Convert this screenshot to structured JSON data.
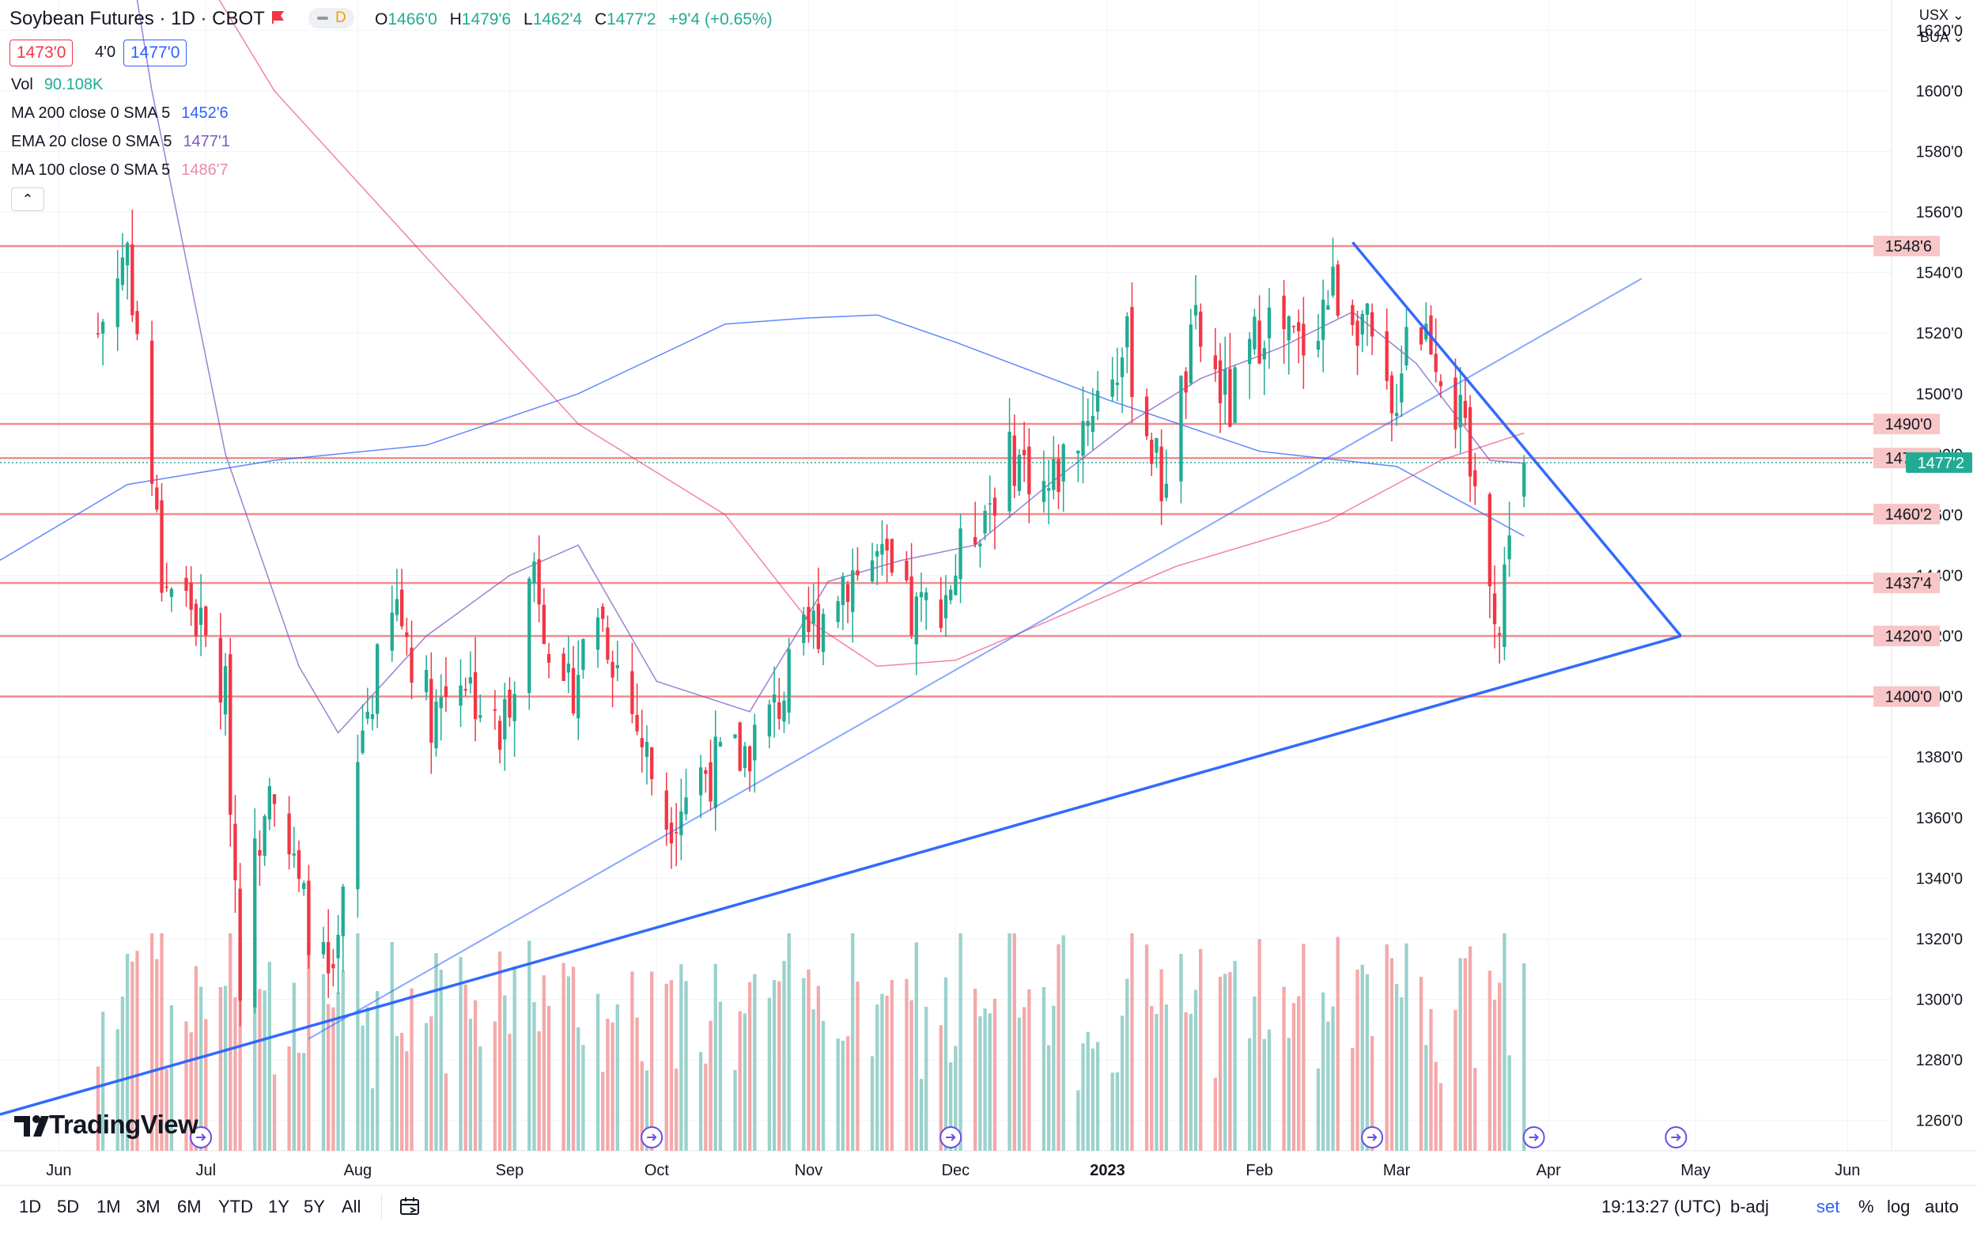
{
  "header": {
    "title": "Soybean Futures · 1D · CBOT",
    "interval_badge": "D",
    "ohlc": [
      {
        "label": "O",
        "value": "1466'0"
      },
      {
        "label": "H",
        "value": "1479'6"
      },
      {
        "label": "L",
        "value": "1462'4"
      },
      {
        "label": "C",
        "value": "1477'2"
      }
    ],
    "change": "+9'4 (+0.65%)",
    "bid": "1473'0",
    "spread": "4'0",
    "ask": "1477'0"
  },
  "indicators": [
    {
      "label": "Vol",
      "value": "90.108K",
      "color": "#22ab94"
    },
    {
      "label": "MA 200 close 0 SMA 5",
      "value": "1452'6",
      "color": "#2962ff"
    },
    {
      "label": "EMA 20 close 0 SMA 5",
      "value": "1477'1",
      "color": "#7e57c2"
    },
    {
      "label": "MA 100 close 0 SMA 5",
      "value": "1486'7",
      "color": "#e91e63"
    }
  ],
  "collapse_icon": "chevron-up",
  "currency": "USX",
  "unit": "BUA",
  "bottom_bar": {
    "ranges": [
      "1D",
      "5D",
      "1M",
      "3M",
      "6M",
      "YTD",
      "1Y",
      "5Y",
      "All"
    ],
    "clock": "19:13:27 (UTC)",
    "options": [
      {
        "label": "b-adj",
        "active": false
      },
      {
        "label": "set",
        "active": true
      },
      {
        "label": "%",
        "active": false
      },
      {
        "label": "log",
        "active": false
      },
      {
        "label": "auto",
        "active": false
      }
    ]
  },
  "logo": "TradingView",
  "colors": {
    "up": "#22ab94",
    "down": "#f23645",
    "up_vol": "#9bd2cc",
    "down_vol": "#f4a9aa",
    "level": "#f28b8b",
    "trend": "#2962ff"
  },
  "chart_data": {
    "type": "candlestick",
    "y_axis": {
      "ylim": [
        1250,
        1630
      ],
      "ticks": [
        "1260'0",
        "1280'0",
        "1300'0",
        "1320'0",
        "1340'0",
        "1360'0",
        "1380'0",
        "1400'0",
        "1420'0",
        "1440'0",
        "1460'0",
        "1480'0",
        "1500'0",
        "1520'0",
        "1540'0",
        "1560'0",
        "1580'0",
        "1600'0",
        "1620'0"
      ],
      "tick_values": [
        1260,
        1280,
        1300,
        1320,
        1340,
        1360,
        1380,
        1400,
        1420,
        1440,
        1460,
        1480,
        1500,
        1520,
        1540,
        1560,
        1580,
        1600,
        1620
      ]
    },
    "x_axis": {
      "labels": [
        "Jun",
        "Jul",
        "Aug",
        "Sep",
        "Oct",
        "Nov",
        "Dec",
        "2023",
        "Feb",
        "Mar",
        "Apr",
        "May",
        "Jun"
      ],
      "dates": [
        "2022-06-01",
        "2022-07-01",
        "2022-08-01",
        "2022-09-01",
        "2022-10-01",
        "2022-11-01",
        "2022-12-01",
        "2023-01-01",
        "2023-02-01",
        "2023-03-01",
        "2023-04-01",
        "2023-05-01",
        "2023-06-01"
      ],
      "range": [
        "2022-05-20",
        "2023-06-10"
      ]
    },
    "horizontal_levels": [
      {
        "value": 1548.75,
        "label": "1548'6"
      },
      {
        "value": 1490,
        "label": "1490'0"
      },
      {
        "value": 1478.75,
        "label": "1478'6"
      },
      {
        "value": 1460.25,
        "label": "1460'2"
      },
      {
        "value": 1437.5,
        "label": "1437'4"
      },
      {
        "value": 1420,
        "label": "1420'0"
      },
      {
        "value": 1400,
        "label": "1400'0"
      }
    ],
    "last_price": {
      "value": 1477.25,
      "label": "1477'2"
    },
    "trendlines": [
      {
        "name": "resistance",
        "from": [
          "2023-02-20",
          1550
        ],
        "to": [
          "2023-04-28",
          1420
        ]
      },
      {
        "name": "support",
        "from": [
          "2022-05-20",
          1262
        ],
        "to": [
          "2023-04-28",
          1420
        ]
      },
      {
        "name": "rising-support",
        "from": [
          "2022-07-22",
          1287
        ],
        "to": [
          "2023-04-20",
          1538
        ]
      }
    ],
    "moving_averages": [
      {
        "name": "MA 200",
        "color": "#2962ff",
        "x": [
          "2022-05-20",
          "2022-06-15",
          "2022-07-15",
          "2022-08-15",
          "2022-09-15",
          "2022-10-15",
          "2022-11-01",
          "2022-11-15",
          "2022-12-01",
          "2023-01-01",
          "2023-02-01",
          "2023-03-01",
          "2023-03-27"
        ],
        "y": [
          1445,
          1470,
          1478,
          1483,
          1500,
          1523,
          1525,
          1526,
          1517,
          1498,
          1481,
          1476,
          1453
        ]
      },
      {
        "name": "EMA 20",
        "color": "#7e57c2",
        "x": [
          "2022-05-20",
          "2022-06-05",
          "2022-06-20",
          "2022-07-05",
          "2022-07-20",
          "2022-07-28",
          "2022-08-15",
          "2022-09-01",
          "2022-09-15",
          "2022-10-01",
          "2022-10-20",
          "2022-11-05",
          "2022-11-20",
          "2022-12-05",
          "2022-12-20",
          "2023-01-05",
          "2023-01-20",
          "2023-02-05",
          "2023-02-20",
          "2023-03-05",
          "2023-03-20",
          "2023-03-27"
        ],
        "y": [
          1900,
          1750,
          1600,
          1480,
          1410,
          1388,
          1420,
          1440,
          1450,
          1405,
          1395,
          1438,
          1445,
          1450,
          1470,
          1490,
          1505,
          1515,
          1527,
          1510,
          1478,
          1477
        ]
      },
      {
        "name": "MA 100",
        "color": "#e91e63",
        "x": [
          "2022-05-20",
          "2022-06-15",
          "2022-07-15",
          "2022-08-15",
          "2022-09-15",
          "2022-10-15",
          "2022-11-01",
          "2022-11-15",
          "2022-12-01",
          "2022-12-20",
          "2023-01-15",
          "2023-02-15",
          "2023-03-10",
          "2023-03-27"
        ],
        "y": [
          1800,
          1680,
          1600,
          1545,
          1490,
          1460,
          1425,
          1410,
          1412,
          1425,
          1443,
          1458,
          1478,
          1487
        ]
      }
    ]
  }
}
